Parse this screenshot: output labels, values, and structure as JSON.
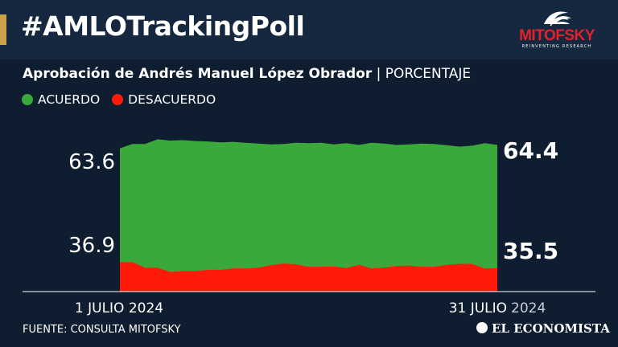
{
  "header": {
    "hashtag": "#AMLOTrackingPoll",
    "logo_text": "MITOFSKY",
    "logo_tagline": "REINVENTING RESEARCH"
  },
  "subtitle": {
    "main": "Aprobación de Andrés Manuel López Obrador",
    "separator": " | ",
    "unit": "PORCENTAJE"
  },
  "legend": [
    {
      "label": "ACUERDO",
      "color": "#3aa83a"
    },
    {
      "label": "DESACUERDO",
      "color": "#ff1a0a"
    }
  ],
  "footer": {
    "source": "FUENTE: CONSULTA MITOFSKY",
    "brand": "EL ECONOMISTA"
  },
  "colors": {
    "background": "#0f1d30",
    "accent": "#c9a24a",
    "acuerdo": "#3aa83a",
    "desacuerdo": "#ff1a0a"
  },
  "chart_data": {
    "type": "area",
    "x_start_label": "1 JULIO 2024",
    "x_end_label_day": "31 JULIO",
    "x_end_label_year": "2024",
    "start_labels": {
      "acuerdo": "63.6",
      "desacuerdo": "36.9"
    },
    "end_labels": {
      "acuerdo": "64.4",
      "desacuerdo": "35.5"
    },
    "x": [
      1,
      2,
      3,
      4,
      5,
      6,
      7,
      8,
      9,
      10,
      11,
      12,
      13,
      14,
      15,
      16,
      17,
      18,
      19,
      20,
      21,
      22,
      23,
      24,
      25,
      26,
      27,
      28,
      29,
      30,
      31
    ],
    "series": [
      {
        "name": "ACUERDO",
        "values": [
          63.6,
          64.6,
          64.6,
          65.7,
          65.4,
          65.5,
          65.3,
          65.2,
          65.0,
          65.1,
          64.9,
          64.7,
          64.5,
          64.6,
          64.9,
          64.8,
          64.9,
          64.5,
          64.8,
          64.4,
          64.9,
          64.7,
          64.4,
          64.5,
          64.7,
          64.6,
          64.3,
          64.0,
          64.2,
          64.8,
          64.4
        ]
      },
      {
        "name": "DESACUERDO",
        "values": [
          36.9,
          36.9,
          35.6,
          35.6,
          34.6,
          34.8,
          34.8,
          35.1,
          35.1,
          35.4,
          35.4,
          35.6,
          36.2,
          36.6,
          36.4,
          35.8,
          35.8,
          35.9,
          35.5,
          36.3,
          35.4,
          35.6,
          36.0,
          36.1,
          35.8,
          35.8,
          36.3,
          36.5,
          36.5,
          35.4,
          35.5
        ]
      }
    ],
    "ylim": [
      30,
      72
    ]
  }
}
